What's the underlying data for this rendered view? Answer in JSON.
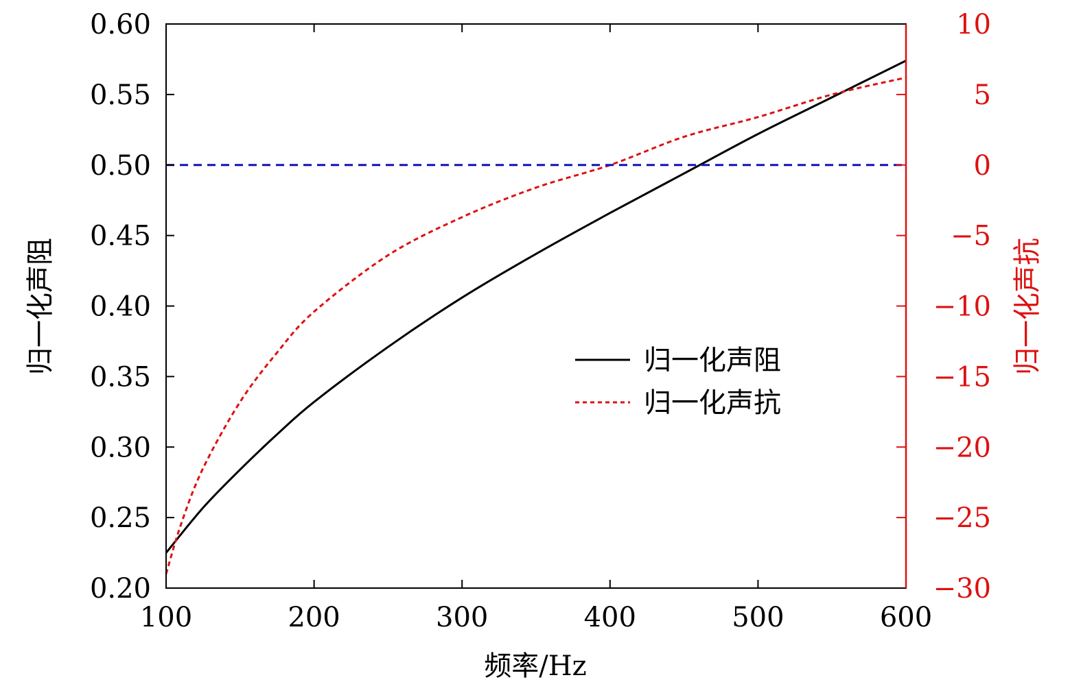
{
  "chart_data": {
    "type": "line",
    "xlabel": "频率/Hz",
    "ylabel": "归一化声阻",
    "y2label": "归一化声抗",
    "xlim": [
      100,
      600
    ],
    "ylim": [
      0.2,
      0.6
    ],
    "y2lim": [
      -30,
      10
    ],
    "xticks": [
      "100",
      "200",
      "300",
      "400",
      "500",
      "600"
    ],
    "yticks": [
      "0.20",
      "0.25",
      "0.30",
      "0.35",
      "0.40",
      "0.45",
      "0.50",
      "0.55",
      "0.60"
    ],
    "y2ticks": [
      "−30",
      "−25",
      "−20",
      "−15",
      "−10",
      "−5",
      "0",
      "5",
      "10"
    ],
    "grid": false,
    "legend_position": "center-right",
    "series": [
      {
        "name": "归一化声阻",
        "axis": "left",
        "color": "#000000",
        "style": "solid",
        "x": [
          100,
          125,
          150,
          175,
          200,
          250,
          300,
          350,
          400,
          450,
          500,
          550,
          600
        ],
        "y": [
          0.225,
          0.257,
          0.284,
          0.309,
          0.332,
          0.371,
          0.406,
          0.437,
          0.466,
          0.494,
          0.522,
          0.548,
          0.574
        ]
      },
      {
        "name": "归一化声抗",
        "axis": "right",
        "color": "#dd1111",
        "style": "dashed",
        "x": [
          100,
          110,
          125,
          150,
          175,
          200,
          250,
          300,
          350,
          400,
          450,
          500,
          550,
          600
        ],
        "y": [
          -29.0,
          -25.5,
          -21.5,
          -16.8,
          -13.3,
          -10.4,
          -6.4,
          -3.7,
          -1.6,
          0.0,
          2.0,
          3.4,
          5.0,
          6.2
        ]
      },
      {
        "axis": "right",
        "color": "#1111bb",
        "style": "dashed",
        "x": [
          100,
          600
        ],
        "y": [
          0,
          0
        ]
      }
    ]
  }
}
